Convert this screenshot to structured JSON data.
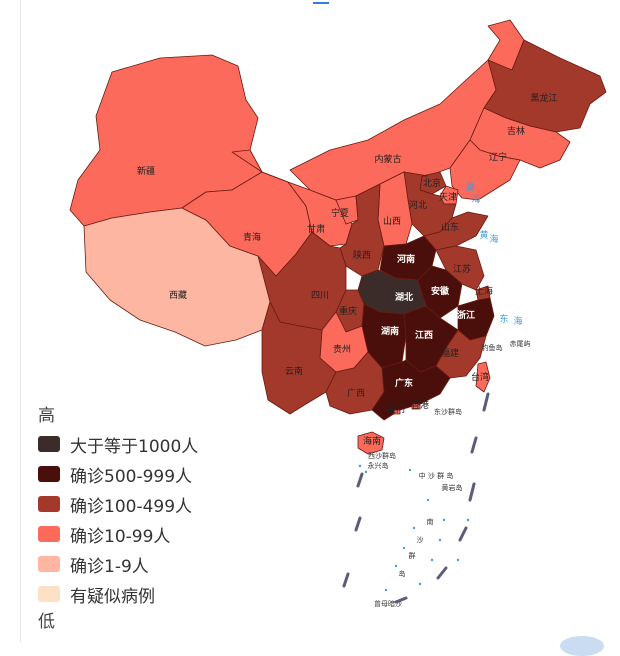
{
  "colors": {
    "tier_1000_plus": "#3b2b29",
    "tier_500_999": "#4a0f0a",
    "tier_100_499": "#a2392b",
    "tier_10_99": "#fb6a5a",
    "tier_1_9": "#fdb6a1",
    "tier_suspected": "#fde0c5"
  },
  "provinces": [
    {
      "name": "新疆",
      "tier": "tier_10_99"
    },
    {
      "name": "西藏",
      "tier": "tier_1_9"
    },
    {
      "name": "青海",
      "tier": "tier_10_99"
    },
    {
      "name": "甘肃",
      "tier": "tier_10_99"
    },
    {
      "name": "内蒙古",
      "tier": "tier_10_99"
    },
    {
      "name": "黑龙江",
      "tier": "tier_100_499"
    },
    {
      "name": "吉林",
      "tier": "tier_10_99"
    },
    {
      "name": "辽宁",
      "tier": "tier_10_99"
    },
    {
      "name": "北京",
      "tier": "tier_100_499"
    },
    {
      "name": "天津",
      "tier": "tier_10_99"
    },
    {
      "name": "河北",
      "tier": "tier_100_499"
    },
    {
      "name": "山西",
      "tier": "tier_10_99"
    },
    {
      "name": "山东",
      "tier": "tier_100_499"
    },
    {
      "name": "宁夏",
      "tier": "tier_10_99"
    },
    {
      "name": "陕西",
      "tier": "tier_100_499"
    },
    {
      "name": "河南",
      "tier": "tier_500_999"
    },
    {
      "name": "江苏",
      "tier": "tier_100_499"
    },
    {
      "name": "上海",
      "tier": "tier_100_499"
    },
    {
      "name": "安徽",
      "tier": "tier_500_999"
    },
    {
      "name": "湖北",
      "tier": "tier_1000_plus"
    },
    {
      "name": "四川",
      "tier": "tier_100_499"
    },
    {
      "name": "重庆",
      "tier": "tier_100_499"
    },
    {
      "name": "浙江",
      "tier": "tier_500_999"
    },
    {
      "name": "湖南",
      "tier": "tier_500_999"
    },
    {
      "name": "江西",
      "tier": "tier_500_999"
    },
    {
      "name": "贵州",
      "tier": "tier_10_99"
    },
    {
      "name": "云南",
      "tier": "tier_100_499"
    },
    {
      "name": "福建",
      "tier": "tier_100_499"
    },
    {
      "name": "广西",
      "tier": "tier_100_499"
    },
    {
      "name": "广东",
      "tier": "tier_500_999"
    },
    {
      "name": "台湾",
      "tier": "tier_10_99"
    },
    {
      "name": "澳门",
      "tier": "tier_10_99"
    },
    {
      "name": "香港",
      "tier": "tier_10_99"
    },
    {
      "name": "海南",
      "tier": "tier_10_99"
    }
  ],
  "sea_labels": [
    "渤",
    "海",
    "黄",
    "海",
    "东",
    "海"
  ],
  "island_labels": [
    "钓鱼岛",
    "赤尾屿",
    "东沙群岛",
    "西沙群岛",
    "永兴岛",
    "中 沙 群 岛",
    "黄岩岛",
    "南",
    "沙",
    "群",
    "岛",
    "曾母暗沙"
  ],
  "legend": {
    "high": "高",
    "low": "低",
    "items": [
      {
        "label": "大于等于1000人",
        "tier": "tier_1000_plus"
      },
      {
        "label": "确诊500-999人",
        "tier": "tier_500_999"
      },
      {
        "label": "确诊100-499人",
        "tier": "tier_100_499"
      },
      {
        "label": "确诊10-99人",
        "tier": "tier_10_99"
      },
      {
        "label": "确诊1-9人",
        "tier": "tier_1_9"
      },
      {
        "label": "有疑似病例",
        "tier": "tier_suspected"
      }
    ]
  }
}
